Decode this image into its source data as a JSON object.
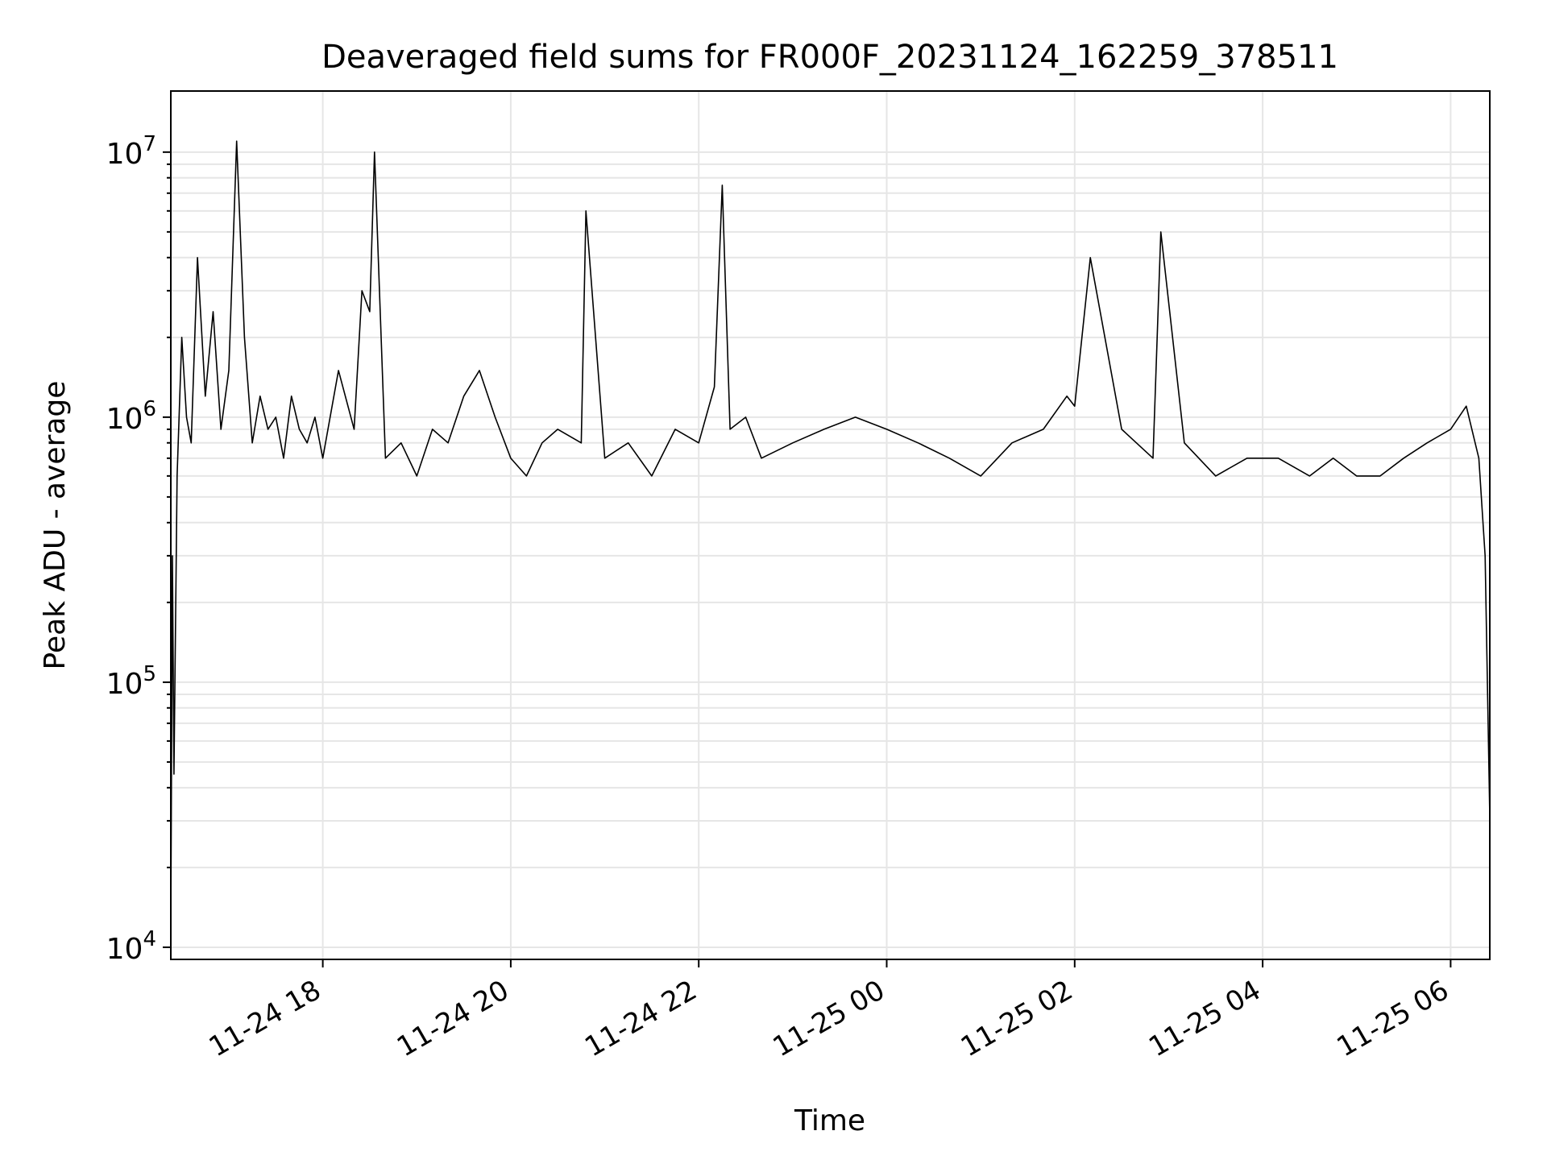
{
  "chart_data": {
    "type": "line",
    "title": "Deaveraged field sums for FR000F_20231124_162259_378511",
    "xlabel": "Time",
    "ylabel": "Peak ADU - average",
    "y_scale": "log",
    "ylim": [
      9000,
      17000000
    ],
    "xlim": [
      "2023-11-24 16:22:59",
      "2023-11-25 06:25:00"
    ],
    "x_tick_labels": [
      {
        "label": "11-24 18",
        "t": "2023-11-24 18:00"
      },
      {
        "label": "11-24 20",
        "t": "2023-11-24 20:00"
      },
      {
        "label": "11-24 22",
        "t": "2023-11-24 22:00"
      },
      {
        "label": "11-25 00",
        "t": "2023-11-25 00:00"
      },
      {
        "label": "11-25 02",
        "t": "2023-11-25 02:00"
      },
      {
        "label": "11-25 04",
        "t": "2023-11-25 04:00"
      },
      {
        "label": "11-25 06",
        "t": "2023-11-25 06:00"
      }
    ],
    "y_tick_labels": [
      {
        "base": "10",
        "exp": "4",
        "value": 10000
      },
      {
        "base": "10",
        "exp": "5",
        "value": 100000
      },
      {
        "base": "10",
        "exp": "6",
        "value": 1000000
      },
      {
        "base": "10",
        "exp": "7",
        "value": 10000000
      }
    ],
    "grid": true,
    "legend": "none",
    "series": [
      {
        "color": "#000000",
        "x": [
          "2023-11-24 16:23",
          "2023-11-24 16:24",
          "2023-11-24 16:25",
          "2023-11-24 16:27",
          "2023-11-24 16:30",
          "2023-11-24 16:33",
          "2023-11-24 16:36",
          "2023-11-24 16:40",
          "2023-11-24 16:45",
          "2023-11-24 16:50",
          "2023-11-24 16:55",
          "2023-11-24 17:00",
          "2023-11-24 17:05",
          "2023-11-24 17:10",
          "2023-11-24 17:15",
          "2023-11-24 17:20",
          "2023-11-24 17:25",
          "2023-11-24 17:30",
          "2023-11-24 17:35",
          "2023-11-24 17:40",
          "2023-11-24 17:45",
          "2023-11-24 17:50",
          "2023-11-24 17:55",
          "2023-11-24 18:00",
          "2023-11-24 18:10",
          "2023-11-24 18:20",
          "2023-11-24 18:25",
          "2023-11-24 18:30",
          "2023-11-24 18:33",
          "2023-11-24 18:40",
          "2023-11-24 18:50",
          "2023-11-24 19:00",
          "2023-11-24 19:10",
          "2023-11-24 19:20",
          "2023-11-24 19:30",
          "2023-11-24 19:40",
          "2023-11-24 19:50",
          "2023-11-24 20:00",
          "2023-11-24 20:10",
          "2023-11-24 20:20",
          "2023-11-24 20:30",
          "2023-11-24 20:45",
          "2023-11-24 20:48",
          "2023-11-24 21:00",
          "2023-11-24 21:15",
          "2023-11-24 21:30",
          "2023-11-24 21:45",
          "2023-11-24 22:00",
          "2023-11-24 22:10",
          "2023-11-24 22:15",
          "2023-11-24 22:20",
          "2023-11-24 22:30",
          "2023-11-24 22:40",
          "2023-11-24 23:00",
          "2023-11-24 23:20",
          "2023-11-24 23:40",
          "2023-11-25 00:00",
          "2023-11-25 00:20",
          "2023-11-25 00:40",
          "2023-11-25 01:00",
          "2023-11-25 01:20",
          "2023-11-25 01:40",
          "2023-11-25 01:55",
          "2023-11-25 02:00",
          "2023-11-25 02:10",
          "2023-11-25 02:30",
          "2023-11-25 02:50",
          "2023-11-25 02:55",
          "2023-11-25 03:10",
          "2023-11-25 03:30",
          "2023-11-25 03:50",
          "2023-11-25 04:10",
          "2023-11-25 04:30",
          "2023-11-25 04:45",
          "2023-11-25 05:00",
          "2023-11-25 05:15",
          "2023-11-25 05:30",
          "2023-11-25 05:45",
          "2023-11-25 06:00",
          "2023-11-25 06:10",
          "2023-11-25 06:18",
          "2023-11-25 06:22",
          "2023-11-25 06:25"
        ],
        "y": [
          12000,
          300000,
          45000,
          600000,
          2000000,
          1000000,
          800000,
          4000000,
          1200000,
          2500000,
          900000,
          1500000,
          11000000,
          2000000,
          800000,
          1200000,
          900000,
          1000000,
          700000,
          1200000,
          900000,
          800000,
          1000000,
          700000,
          1500000,
          900000,
          3000000,
          2500000,
          10000000,
          700000,
          800000,
          600000,
          900000,
          800000,
          1200000,
          1500000,
          1000000,
          700000,
          600000,
          800000,
          900000,
          800000,
          6000000,
          700000,
          800000,
          600000,
          900000,
          800000,
          1300000,
          7500000,
          900000,
          1000000,
          700000,
          800000,
          900000,
          1000000,
          900000,
          800000,
          700000,
          600000,
          800000,
          900000,
          1200000,
          1100000,
          4000000,
          900000,
          700000,
          5000000,
          800000,
          600000,
          700000,
          700000,
          600000,
          700000,
          600000,
          600000,
          700000,
          800000,
          900000,
          1100000,
          700000,
          300000,
          31000
        ]
      }
    ]
  }
}
